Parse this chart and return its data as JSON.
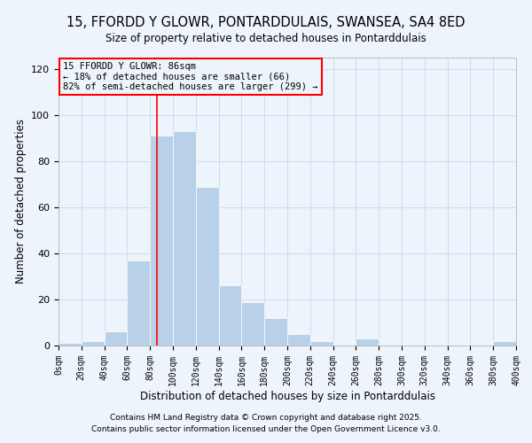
{
  "title": "15, FFORDD Y GLOWR, PONTARDDULAIS, SWANSEA, SA4 8ED",
  "subtitle": "Size of property relative to detached houses in Pontarddulais",
  "xlabel": "Distribution of detached houses by size in Pontarddulais",
  "ylabel": "Number of detached properties",
  "bin_edges": [
    0,
    20,
    40,
    60,
    80,
    100,
    120,
    140,
    160,
    180,
    200,
    220,
    240,
    260,
    280,
    300,
    320,
    340,
    360,
    380,
    400
  ],
  "counts": [
    1,
    2,
    6,
    37,
    91,
    93,
    69,
    26,
    19,
    12,
    5,
    2,
    0,
    3,
    0,
    0,
    0,
    0,
    0,
    2
  ],
  "bar_color": "#b8d0e8",
  "bar_edge_color": "white",
  "grid_color": "#c8ddf0",
  "property_line_x": 86,
  "property_line_color": "red",
  "annotation_title": "15 FFORDD Y GLOWR: 86sqm",
  "annotation_line1": "← 18% of detached houses are smaller (66)",
  "annotation_line2": "82% of semi-detached houses are larger (299) →",
  "annotation_box_color": "red",
  "ylim": [
    0,
    125
  ],
  "xlim": [
    0,
    400
  ],
  "background_color": "#eef4fb",
  "footer1": "Contains HM Land Registry data © Crown copyright and database right 2025.",
  "footer2": "Contains public sector information licensed under the Open Government Licence v3.0.",
  "tick_labels": [
    "0sqm",
    "20sqm",
    "40sqm",
    "60sqm",
    "80sqm",
    "100sqm",
    "120sqm",
    "140sqm",
    "160sqm",
    "180sqm",
    "200sqm",
    "220sqm",
    "240sqm",
    "260sqm",
    "280sqm",
    "300sqm",
    "320sqm",
    "340sqm",
    "360sqm",
    "380sqm",
    "400sqm"
  ],
  "ytick_labels": [
    "0",
    "20",
    "40",
    "60",
    "80",
    "100",
    "120"
  ],
  "ytick_vals": [
    0,
    20,
    40,
    60,
    80,
    100,
    120
  ]
}
